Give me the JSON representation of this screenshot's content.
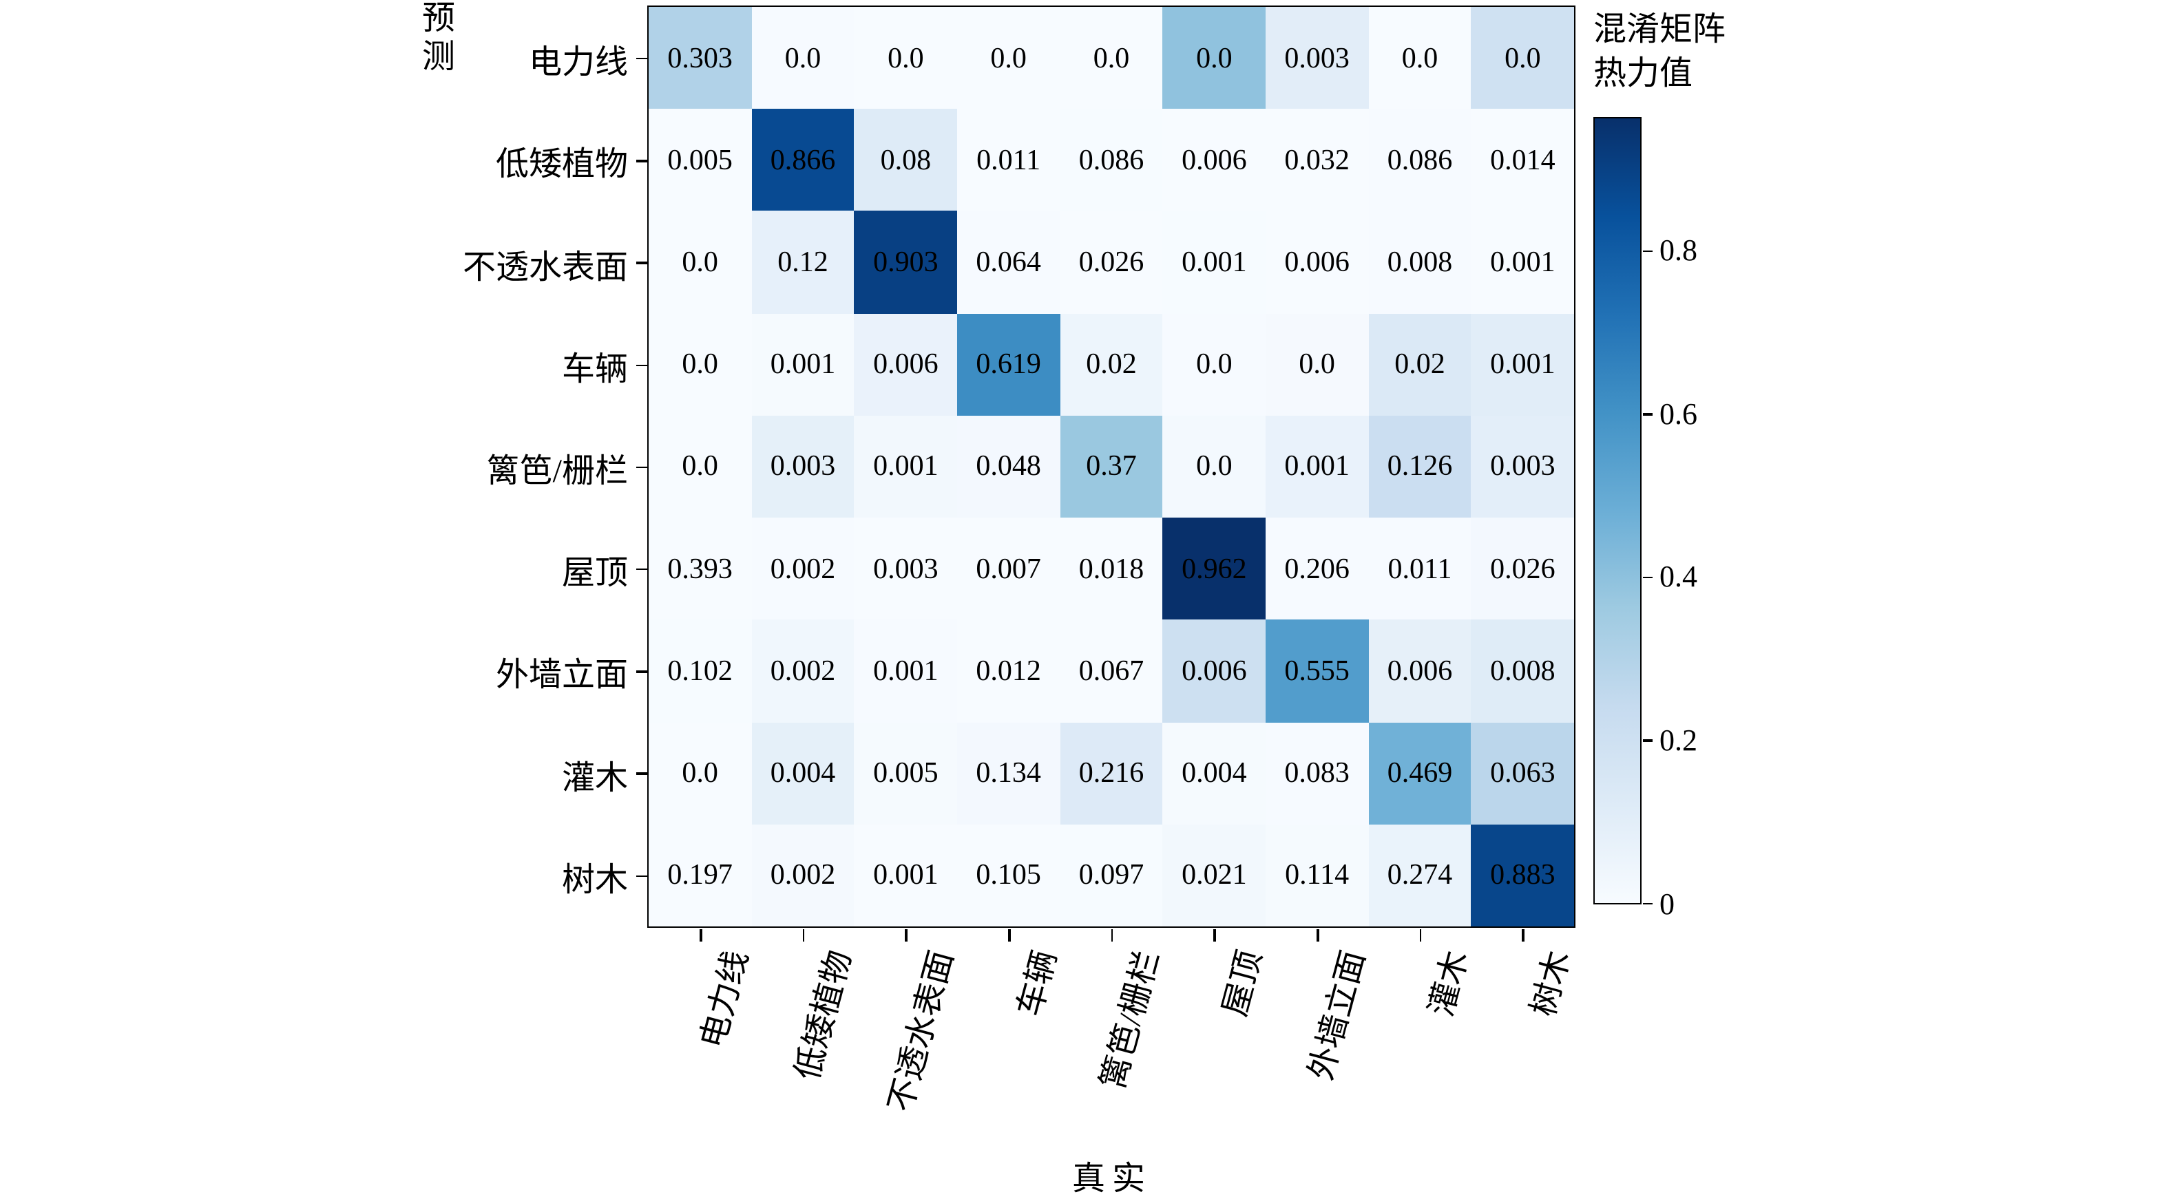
{
  "colorbar": {
    "title_line1": "混淆矩阵",
    "title_line2": "热力值",
    "ticks": [
      {
        "label": "0.8",
        "value": 0.8
      },
      {
        "label": "0.6",
        "value": 0.6
      },
      {
        "label": "0.4",
        "value": 0.4
      },
      {
        "label": "0.2",
        "value": 0.2
      },
      {
        "label": "0",
        "value": 0
      }
    ]
  },
  "chart_data": {
    "type": "heatmap",
    "title": "",
    "xlabel": "真实",
    "ylabel": "预测",
    "categories": [
      "电力线",
      "低矮植物",
      "不透水表面",
      "车辆",
      "篱笆/栅栏",
      "屋顶",
      "外墙立面",
      "灌木",
      "树木"
    ],
    "rows_are": "预测 (predicted class, top to bottom)",
    "cols_are": "真实 (true class, left to right)",
    "values": [
      [
        "0.303",
        "0.0",
        "0.0",
        "0.0",
        "0.0",
        "0.0",
        "0.003",
        "0.0",
        "0.0"
      ],
      [
        "0.005",
        "0.866",
        "0.08",
        "0.011",
        "0.086",
        "0.006",
        "0.032",
        "0.086",
        "0.014"
      ],
      [
        "0.0",
        "0.12",
        "0.903",
        "0.064",
        "0.026",
        "0.001",
        "0.006",
        "0.008",
        "0.001"
      ],
      [
        "0.0",
        "0.001",
        "0.006",
        "0.619",
        "0.02",
        "0.0",
        "0.0",
        "0.02",
        "0.001"
      ],
      [
        "0.0",
        "0.003",
        "0.001",
        "0.048",
        "0.37",
        "0.0",
        "0.001",
        "0.126",
        "0.003"
      ],
      [
        "0.393",
        "0.002",
        "0.003",
        "0.007",
        "0.018",
        "0.962",
        "0.206",
        "0.011",
        "0.026"
      ],
      [
        "0.102",
        "0.002",
        "0.001",
        "0.012",
        "0.067",
        "0.006",
        "0.555",
        "0.006",
        "0.008"
      ],
      [
        "0.0",
        "0.004",
        "0.005",
        "0.134",
        "0.216",
        "0.004",
        "0.083",
        "0.469",
        "0.063"
      ],
      [
        "0.197",
        "0.002",
        "0.001",
        "0.105",
        "0.097",
        "0.021",
        "0.114",
        "0.274",
        "0.883"
      ]
    ],
    "vmin": 0,
    "vmax": 0.962,
    "colormap_name": "Blues",
    "colormap_stops": [
      "#f7fbff",
      "#deebf7",
      "#c6dbef",
      "#9ecae1",
      "#6baed6",
      "#4292c6",
      "#2171b5",
      "#08519c",
      "#08306b"
    ],
    "cell_color_source": "transposed",
    "annotation_color": "#000000",
    "legend_position": "right-colorbar",
    "grid": false
  }
}
